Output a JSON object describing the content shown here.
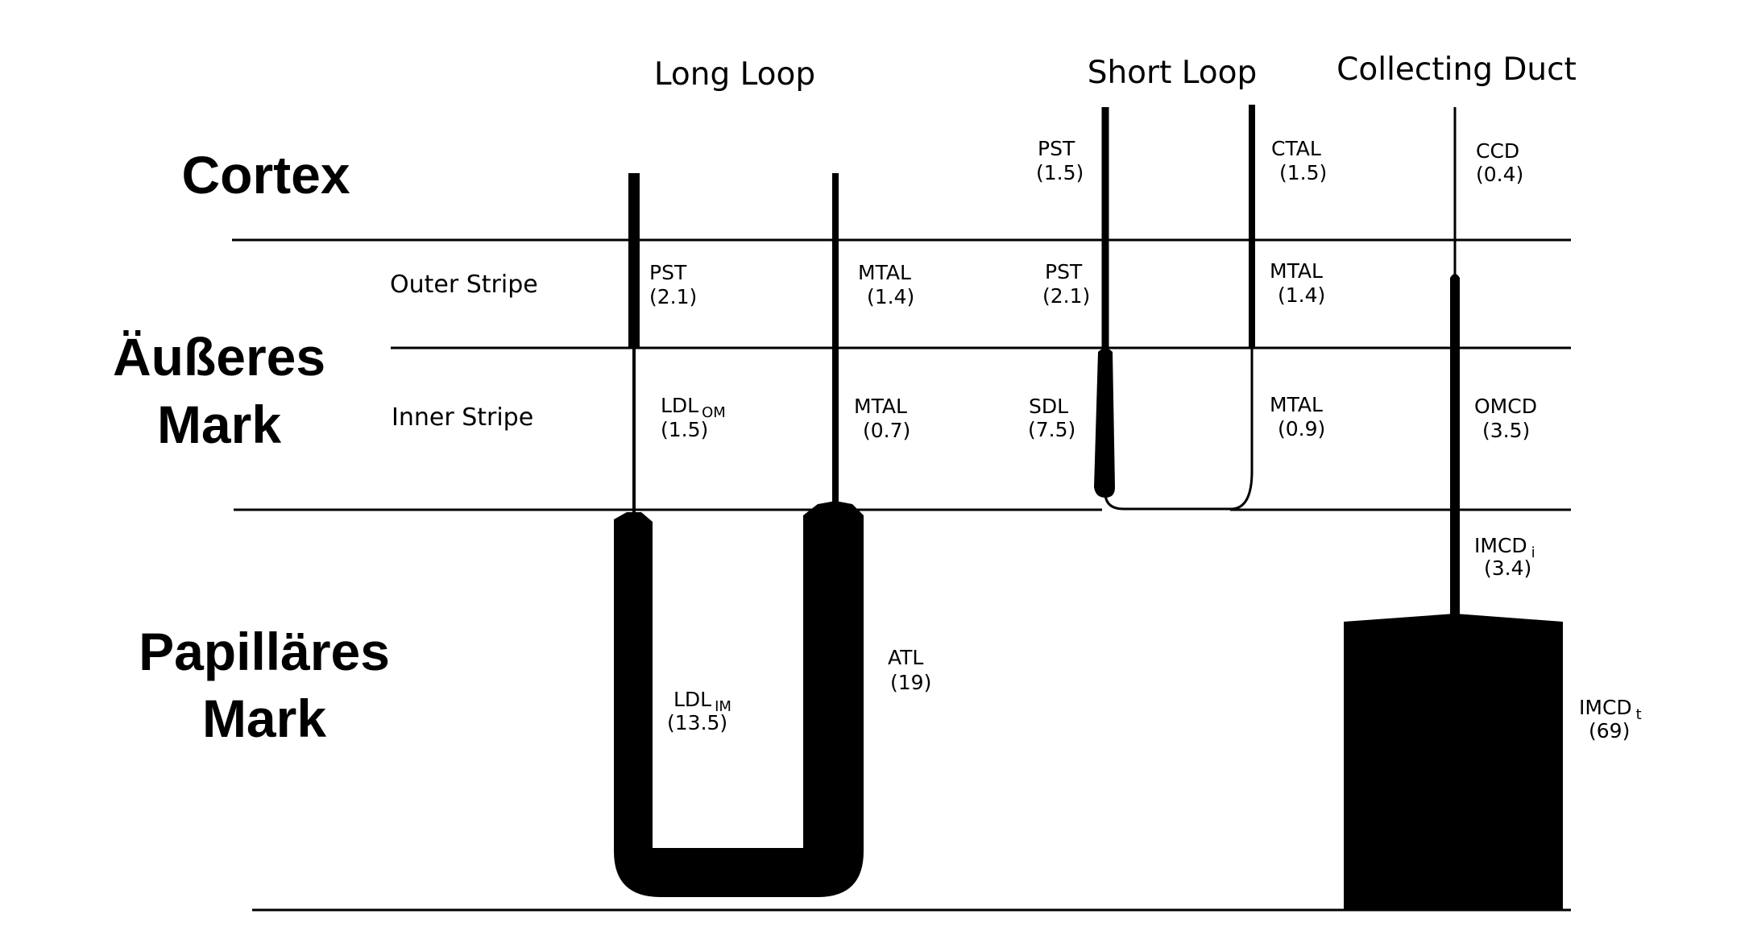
{
  "headers": {
    "long_loop": "Long Loop",
    "short_loop": "Short Loop",
    "collecting_duct": "Collecting Duct"
  },
  "zones": {
    "cortex": "Cortex",
    "outer_medulla_line1": "Äußeres",
    "outer_medulla_line2": "Mark",
    "inner_medulla_line1": "Papilläres",
    "inner_medulla_line2": "Mark"
  },
  "stripes": {
    "outer": "Outer Stripe",
    "inner": "Inner Stripe"
  },
  "segments": {
    "long_pst": {
      "name": "PST",
      "value": "(2.1)"
    },
    "long_ldl_om": {
      "name": "LDL",
      "sub": "OM",
      "value": "(1.5)"
    },
    "long_ldl_im": {
      "name": "LDL",
      "sub": "IM",
      "value": "(13.5)"
    },
    "long_atl": {
      "name": "ATL",
      "value": "(19)"
    },
    "long_mtal_os": {
      "name": "MTAL",
      "value": "(1.4)"
    },
    "long_mtal_is": {
      "name": "MTAL",
      "value": "(0.7)"
    },
    "short_pst_c": {
      "name": "PST",
      "value": "(1.5)"
    },
    "short_pst_os": {
      "name": "PST",
      "value": "(2.1)"
    },
    "short_sdl": {
      "name": "SDL",
      "value": "(7.5)"
    },
    "short_ctal": {
      "name": "CTAL",
      "value": "(1.5)"
    },
    "short_mtal_os": {
      "name": "MTAL",
      "value": "(1.4)"
    },
    "short_mtal_is": {
      "name": "MTAL",
      "value": "(0.9)"
    },
    "ccd": {
      "name": "CCD",
      "value": "(0.4)"
    },
    "omcd": {
      "name": "OMCD",
      "value": "(3.5)"
    },
    "imcd_i": {
      "name": "IMCD",
      "sub": "i",
      "value": "(3.4)"
    },
    "imcd_t": {
      "name": "IMCD",
      "sub": "t",
      "value": "(69)"
    }
  },
  "colors": {
    "ink": "#000000",
    "background": "#ffffff"
  }
}
